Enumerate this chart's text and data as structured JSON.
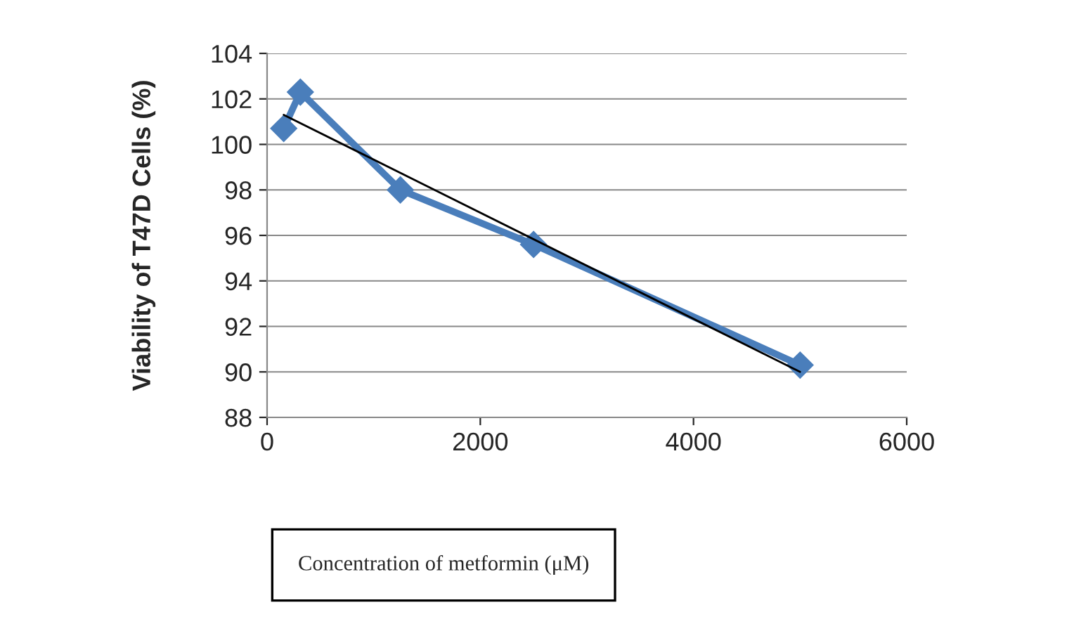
{
  "chart_data": {
    "type": "line",
    "xlabel": "Concentration of metformin (μM)",
    "ylabel": "Viability of T47D Cells (%)",
    "xlim": [
      0,
      6000
    ],
    "xticks": [
      0,
      2000,
      4000,
      6000
    ],
    "ylim": [
      88,
      104
    ],
    "yticks": [
      88,
      90,
      92,
      94,
      96,
      98,
      100,
      102,
      104
    ],
    "grid": "y",
    "marker": "diamond",
    "line_style": "solid",
    "series": [
      {
        "color": "#4a7ebb",
        "x": [
          156,
          312,
          1250,
          2500,
          5000
        ],
        "values": [
          100.7,
          102.3,
          98.0,
          95.6,
          90.3
        ]
      },
      {
        "type": "line",
        "color": "#000000",
        "marker": "none",
        "x": [
          156,
          5000
        ],
        "values": [
          101.3,
          90.0
        ]
      }
    ]
  }
}
